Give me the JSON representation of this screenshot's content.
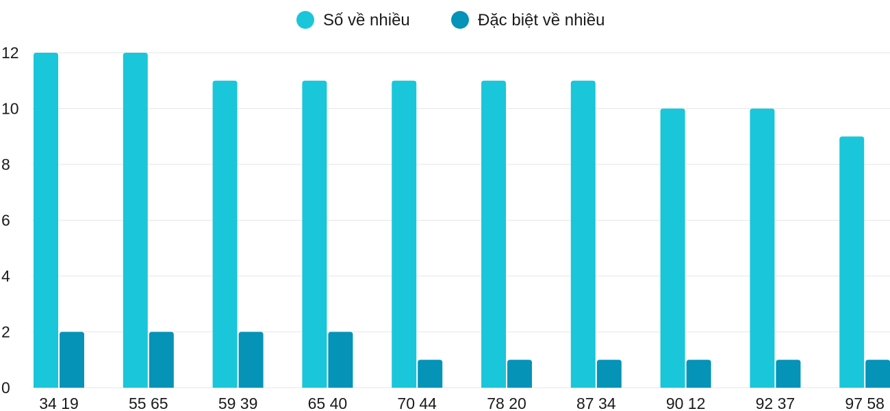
{
  "chart_data": {
    "type": "bar",
    "categories": [
      "34 19",
      "55 65",
      "59 39",
      "65 40",
      "70 44",
      "78 20",
      "87 34",
      "90 12",
      "92 37",
      "97 58"
    ],
    "series": [
      {
        "name": "Số về nhiều",
        "color": "#1ac6d9",
        "values": [
          12,
          12,
          11,
          11,
          11,
          11,
          11,
          10,
          10,
          9
        ]
      },
      {
        "name": "Đặc biệt về nhiều",
        "color": "#0593b8",
        "values": [
          2,
          2,
          2,
          2,
          1,
          1,
          1,
          1,
          1,
          1
        ]
      }
    ],
    "ylim": [
      0,
      12
    ],
    "yticks": [
      0,
      2,
      4,
      6,
      8,
      10,
      12
    ],
    "grid": true,
    "legend": "top-center"
  }
}
